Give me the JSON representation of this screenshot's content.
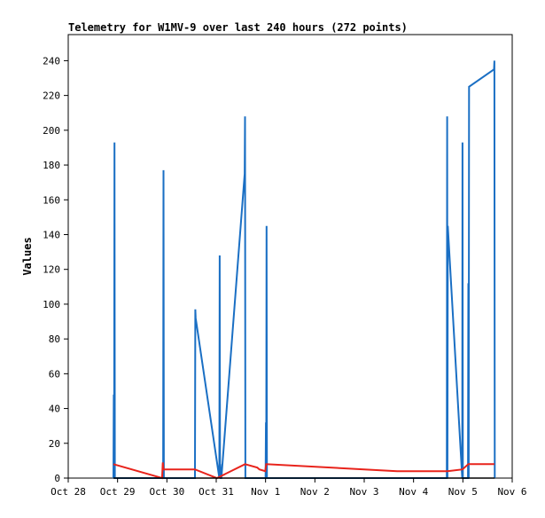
{
  "chart_data": {
    "type": "line",
    "title": "Telemetry for W1MV-9 over last 240 hours (272 points)",
    "xlabel": "",
    "ylabel": "Values",
    "x_tick_labels": [
      "Oct 28",
      "Oct 29",
      "Oct 30",
      "Oct 31",
      "Nov 1",
      "Nov 2",
      "Nov 3",
      "Nov 4",
      "Nov 5",
      "Nov 6"
    ],
    "y_ticks": [
      0,
      20,
      40,
      60,
      80,
      100,
      120,
      140,
      160,
      180,
      200,
      220,
      240
    ],
    "xlim": [
      "Oct 28",
      "Nov 6"
    ],
    "ylim": [
      0,
      255
    ],
    "grid": false,
    "legend": "none",
    "series": [
      {
        "color": "#1a6fc4",
        "x": [
          "Oct 28 22:00",
          "Oct 28 22:10",
          "Oct 28 22:20",
          "Oct 28 22:30",
          "Oct 28 22:40",
          "Oct 28 22:50",
          "Oct 29 22:10",
          "Oct 29 22:20",
          "Oct 29 22:30",
          "Oct 30 13:40",
          "Oct 30 13:50",
          "Oct 30 14:00",
          "Oct 31 01:30",
          "Oct 31 01:40",
          "Oct 31 01:50",
          "Oct 31 02:00",
          "Oct 31 02:10",
          "Oct 31 02:20",
          "Oct 31 02:30",
          "Oct 31 13:50",
          "Oct 31 14:00",
          "Oct 31 14:10",
          "Nov 1 00:00",
          "Nov 1 00:10",
          "Nov 1 00:20",
          "Nov 1 00:30",
          "Nov 1 00:40",
          "Nov 4 16:10",
          "Nov 4 16:20",
          "Nov 4 16:30",
          "Nov 4 16:40",
          "Nov 4 23:40",
          "Nov 4 23:50",
          "Nov 5 00:00",
          "Nov 5 02:30",
          "Nov 5 02:40",
          "Nov 5 02:50",
          "Nov 5 03:00",
          "Nov 5 15:10",
          "Nov 5 15:20",
          "Nov 5 15:30"
        ],
        "y": [
          0,
          48,
          0,
          193,
          0,
          0,
          0,
          177,
          0,
          0,
          97,
          92,
          0,
          128,
          0,
          8,
          0,
          0,
          0,
          175,
          208,
          0,
          0,
          32,
          0,
          145,
          0,
          0,
          208,
          0,
          145,
          0,
          193,
          0,
          0,
          112,
          0,
          225,
          235,
          240,
          0
        ]
      },
      {
        "color": "#e8231b",
        "x": [
          "Oct 28 22:00",
          "Oct 29 21:40",
          "Oct 29 22:00",
          "Oct 29 22:20",
          "Oct 30 13:40",
          "Oct 31 00:20",
          "Oct 31 14:00",
          "Oct 31 20:00",
          "Oct 31 21:00",
          "Oct 31 23:50",
          "Nov 1 00:20",
          "Nov 3 16:00",
          "Nov 4 16:30",
          "Nov 4 23:50",
          "Nov 5 02:40",
          "Nov 5 15:20"
        ],
        "y": [
          8,
          0,
          9,
          5,
          5,
          0,
          8,
          6,
          5,
          4,
          8,
          4,
          4,
          5,
          8,
          8
        ]
      },
      {
        "color": "#000000",
        "x": [
          "Oct 28 22:00",
          "Nov 5 15:30"
        ],
        "y": [
          0,
          0
        ]
      }
    ]
  }
}
